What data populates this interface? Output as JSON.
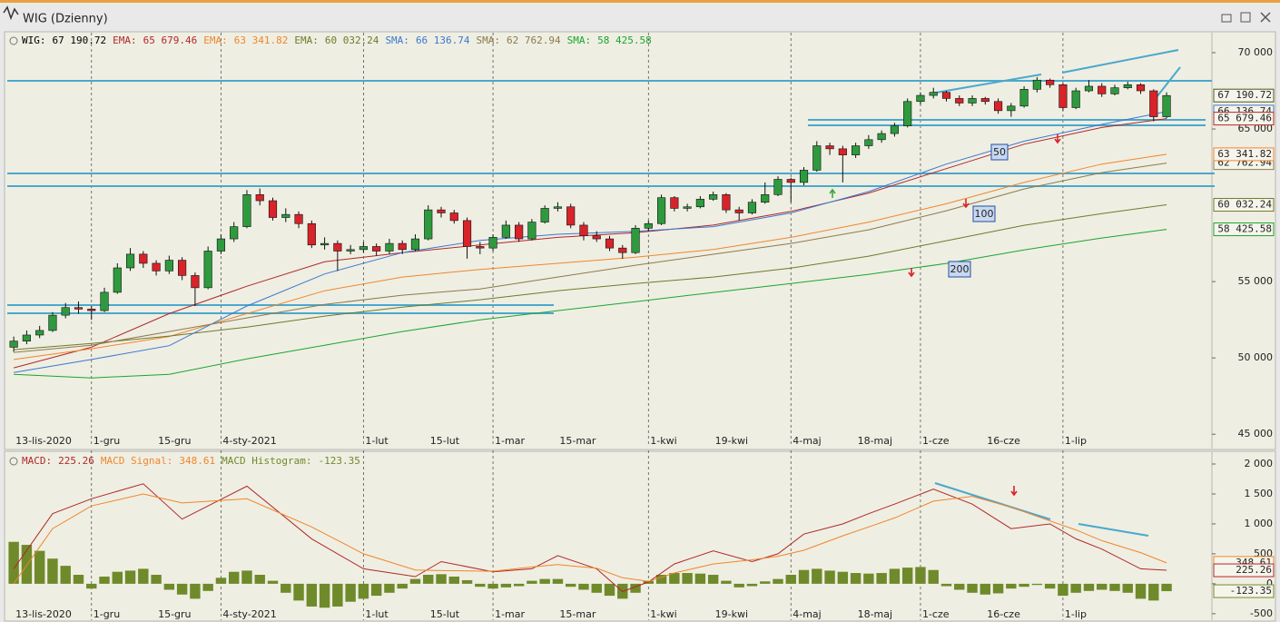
{
  "window": {
    "title": "WIG (Dzienny)"
  },
  "chart_data": [
    {
      "type": "candlestick",
      "name": "WIG:",
      "value_label": "67 190.72",
      "color": "#000000",
      "up_color": "#2e9a3e",
      "down_color": "#d8232a",
      "xlim": [
        -0.5,
        92.5
      ],
      "ylim": [
        44300,
        71070
      ],
      "yticks": [
        {
          "value": 45000,
          "label": "45 000"
        },
        {
          "value": 50000,
          "label": "50 000"
        },
        {
          "value": 55000,
          "label": "55 000"
        },
        {
          "value": 65000,
          "label": "65 000"
        },
        {
          "value": 70000,
          "label": "70 000"
        }
      ],
      "xticks": [
        {
          "value": 0,
          "label": "13-lis-2020",
          "grid": false
        },
        {
          "value": 6,
          "label": "1-gru",
          "grid": true
        },
        {
          "value": 11,
          "label": "15-gru",
          "grid": false
        },
        {
          "value": 16,
          "label": "4-sty-2021",
          "grid": true
        },
        {
          "value": 27,
          "label": "1-lut",
          "grid": true
        },
        {
          "value": 32,
          "label": "15-lut",
          "grid": false
        },
        {
          "value": 37,
          "label": "1-mar",
          "grid": true
        },
        {
          "value": 42,
          "label": "15-mar",
          "grid": false
        },
        {
          "value": 49,
          "label": "1-kwi",
          "grid": true
        },
        {
          "value": 54,
          "label": "19-kwi",
          "grid": false
        },
        {
          "value": 60,
          "label": "4-maj",
          "grid": true
        },
        {
          "value": 65,
          "label": "18-maj",
          "grid": false
        },
        {
          "value": 70,
          "label": "1-cze",
          "grid": true
        },
        {
          "value": 75,
          "label": "16-cze",
          "grid": false
        },
        {
          "value": 81,
          "label": "1-lip",
          "grid": true
        }
      ],
      "ohlc": [
        [
          50700,
          51400,
          50400,
          51100
        ],
        [
          51100,
          51800,
          50900,
          51500
        ],
        [
          51500,
          52100,
          51300,
          51800
        ],
        [
          51800,
          53000,
          51700,
          52800
        ],
        [
          52800,
          53600,
          52600,
          53300
        ],
        [
          53300,
          53700,
          52900,
          53200
        ],
        [
          53200,
          53400,
          52500,
          53100
        ],
        [
          53100,
          54600,
          53000,
          54300
        ],
        [
          54300,
          56200,
          54200,
          55900
        ],
        [
          55900,
          57200,
          55700,
          56800
        ],
        [
          56800,
          57000,
          55900,
          56200
        ],
        [
          56200,
          56400,
          55400,
          55700
        ],
        [
          55700,
          56700,
          55500,
          56400
        ],
        [
          56400,
          56600,
          55100,
          55400
        ],
        [
          55400,
          55600,
          53400,
          54600
        ],
        [
          54600,
          57300,
          54500,
          57000
        ],
        [
          57000,
          58100,
          56800,
          57800
        ],
        [
          57800,
          58900,
          57600,
          58600
        ],
        [
          58600,
          61000,
          58500,
          60700
        ],
        [
          60700,
          61100,
          60000,
          60300
        ],
        [
          60300,
          60500,
          59000,
          59200
        ],
        [
          59200,
          59800,
          58900,
          59400
        ],
        [
          59400,
          59600,
          58500,
          58800
        ],
        [
          58800,
          59000,
          57200,
          57400
        ],
        [
          57400,
          57900,
          57100,
          57500
        ],
        [
          57500,
          57700,
          55700,
          57000
        ],
        [
          57000,
          57400,
          56800,
          57100
        ],
        [
          57100,
          57600,
          56900,
          57300
        ],
        [
          57300,
          57500,
          56700,
          57000
        ],
        [
          57000,
          57800,
          56800,
          57500
        ],
        [
          57500,
          57700,
          56800,
          57100
        ],
        [
          57100,
          58100,
          57000,
          57800
        ],
        [
          57800,
          60000,
          57700,
          59700
        ],
        [
          59700,
          59900,
          59200,
          59500
        ],
        [
          59500,
          59700,
          58800,
          59000
        ],
        [
          59000,
          59200,
          56500,
          57300
        ],
        [
          57300,
          57600,
          56800,
          57200
        ],
        [
          57200,
          58100,
          57000,
          57900
        ],
        [
          57900,
          59000,
          57800,
          58700
        ],
        [
          58700,
          58900,
          57600,
          57800
        ],
        [
          57800,
          59100,
          57700,
          58900
        ],
        [
          58900,
          60000,
          58800,
          59800
        ],
        [
          59800,
          60200,
          59600,
          59900
        ],
        [
          59900,
          60100,
          58500,
          58700
        ],
        [
          58700,
          58900,
          57700,
          58000
        ],
        [
          58000,
          58300,
          57600,
          57800
        ],
        [
          57800,
          58000,
          57000,
          57200
        ],
        [
          57200,
          57400,
          56500,
          56900
        ],
        [
          56900,
          58700,
          56800,
          58500
        ],
        [
          58500,
          59000,
          58300,
          58800
        ],
        [
          58800,
          60700,
          58700,
          60500
        ],
        [
          60500,
          60600,
          59600,
          59800
        ],
        [
          59800,
          60100,
          59600,
          59900
        ],
        [
          59900,
          60600,
          59800,
          60400
        ],
        [
          60400,
          60900,
          60300,
          60700
        ],
        [
          60700,
          60800,
          59500,
          59700
        ],
        [
          59700,
          59900,
          59000,
          59500
        ],
        [
          59500,
          60400,
          59400,
          60200
        ],
        [
          60200,
          61500,
          60100,
          60700
        ],
        [
          60700,
          61900,
          60600,
          61700
        ],
        [
          61700,
          61800,
          60200,
          61500
        ],
        [
          61500,
          62500,
          61300,
          62300
        ],
        [
          62300,
          64200,
          62200,
          63900
        ],
        [
          63900,
          64100,
          63300,
          63700
        ],
        [
          63700,
          63900,
          61500,
          63300
        ],
        [
          63300,
          64100,
          63100,
          63900
        ],
        [
          63900,
          64600,
          63700,
          64300
        ],
        [
          64300,
          64900,
          64100,
          64700
        ],
        [
          64700,
          65400,
          64500,
          65200
        ],
        [
          65200,
          67000,
          65100,
          66800
        ],
        [
          66800,
          67400,
          66600,
          67200
        ],
        [
          67200,
          67700,
          67000,
          67400
        ],
        [
          67400,
          67500,
          66800,
          67000
        ],
        [
          67000,
          67200,
          66500,
          66700
        ],
        [
          66700,
          67200,
          66500,
          67000
        ],
        [
          67000,
          67100,
          66600,
          66800
        ],
        [
          66800,
          67000,
          66000,
          66200
        ],
        [
          66200,
          66700,
          65800,
          66500
        ],
        [
          66500,
          67800,
          66400,
          67600
        ],
        [
          67600,
          68400,
          67400,
          68200
        ],
        [
          68200,
          68300,
          67700,
          67900
        ],
        [
          67900,
          68000,
          66200,
          66400
        ],
        [
          66400,
          67700,
          66300,
          67500
        ],
        [
          67500,
          68200,
          67400,
          67800
        ],
        [
          67800,
          68000,
          67100,
          67300
        ],
        [
          67300,
          67900,
          67200,
          67700
        ],
        [
          67700,
          68100,
          67600,
          67900
        ],
        [
          67900,
          68000,
          67300,
          67500
        ],
        [
          67500,
          67600,
          65500,
          65800
        ],
        [
          65800,
          67400,
          65700,
          67190.72
        ]
      ],
      "x": [
        0,
        6,
        12,
        18,
        24,
        30,
        36,
        42,
        48,
        54,
        60,
        66,
        72,
        78,
        84,
        89
      ],
      "series": [
        {
          "name": "EMA:",
          "value_label": "65 679.46",
          "color": "#b02828",
          "values": [
            49350,
            50700,
            52900,
            54700,
            56300,
            56900,
            57400,
            57900,
            58200,
            58700,
            59600,
            60800,
            62400,
            64000,
            65100,
            65679.46
          ]
        },
        {
          "name": "EMA:",
          "value_label": "63 341.82",
          "color": "#f0862a",
          "values": [
            49900,
            50600,
            51400,
            52900,
            54400,
            55300,
            55800,
            56200,
            56600,
            57100,
            57900,
            58900,
            60100,
            61500,
            62700,
            63341.82
          ]
        },
        {
          "name": "EMA:",
          "value_label": "60 032.24",
          "color": "#6f7a2a",
          "values": [
            50540,
            50950,
            51430,
            52020,
            52740,
            53330,
            53810,
            54400,
            54880,
            55300,
            55890,
            56670,
            57680,
            58690,
            59460,
            60032.24
          ]
        },
        {
          "name": "SMA:",
          "value_label": "66 136.74",
          "color": "#3a78d0",
          "values": [
            49050,
            49900,
            50800,
            53400,
            55500,
            56900,
            57700,
            58100,
            58300,
            58600,
            59500,
            60900,
            62700,
            64200,
            65300,
            66136.74
          ]
        },
        {
          "name": "SMA:",
          "value_label": "62 762.94",
          "color": "#8c7a4a",
          "values": [
            50360,
            50830,
            51730,
            52620,
            53510,
            54110,
            54520,
            55300,
            56070,
            56790,
            57500,
            58390,
            59640,
            61070,
            62140,
            62762.94
          ]
        },
        {
          "name": "SMA:",
          "value_label": "58 425.58",
          "color": "#1aa52e",
          "values": [
            48930,
            48690,
            48930,
            49940,
            50830,
            51730,
            52500,
            53100,
            53690,
            54290,
            54880,
            55480,
            56190,
            57080,
            57860,
            58425.58
          ]
        }
      ],
      "annotations": [
        "50",
        "100",
        "200"
      ]
    },
    {
      "type": "macd",
      "xlim": [
        -0.5,
        92.5
      ],
      "ylim": [
        -608,
        2167
      ],
      "yticks": [
        -500,
        0,
        500,
        {
          "value": 1000,
          "label": "1 000"
        },
        {
          "value": 1500,
          "label": "1 500"
        },
        {
          "value": 2000,
          "label": "2 000"
        }
      ],
      "x": [
        0,
        3,
        6,
        10,
        13,
        18,
        23,
        27,
        31,
        33,
        37,
        40,
        42,
        45,
        47,
        49,
        51,
        54,
        57,
        59,
        61,
        64,
        66,
        68,
        71,
        74,
        77,
        80,
        82,
        84,
        87,
        89
      ],
      "series": [
        {
          "name": "MACD:",
          "value_label": "225.26",
          "color": "#b02828",
          "values": [
            250,
            1170,
            1420,
            1670,
            1080,
            1630,
            750,
            250,
            120,
            370,
            200,
            250,
            470,
            250,
            -130,
            30,
            330,
            550,
            370,
            500,
            830,
            1000,
            1170,
            1330,
            1580,
            1330,
            920,
            1000,
            750,
            580,
            250,
            225.26
          ]
        },
        {
          "name": "MACD Signal:",
          "value_label": "348.61",
          "color": "#f0862a",
          "values": [
            0,
            920,
            1300,
            1500,
            1350,
            1420,
            950,
            500,
            230,
            220,
            210,
            280,
            320,
            260,
            100,
            40,
            180,
            330,
            400,
            460,
            560,
            800,
            950,
            1100,
            1380,
            1460,
            1280,
            1050,
            900,
            720,
            520,
            348.61
          ]
        }
      ],
      "histogram": {
        "name": "MACD Histogram:",
        "value_label": "-123.35",
        "color": "#6f8a2a",
        "values": [
          700,
          650,
          550,
          420,
          300,
          150,
          -80,
          120,
          200,
          220,
          250,
          150,
          -100,
          -180,
          -250,
          -120,
          100,
          200,
          220,
          150,
          50,
          -150,
          -280,
          -380,
          -400,
          -380,
          -300,
          -250,
          -200,
          -150,
          -80,
          80,
          150,
          160,
          120,
          60,
          -50,
          -80,
          -60,
          -40,
          50,
          80,
          80,
          -50,
          -100,
          -150,
          -200,
          -250,
          -150,
          50,
          150,
          180,
          180,
          170,
          150,
          50,
          -60,
          -40,
          40,
          80,
          150,
          230,
          250,
          220,
          200,
          180,
          170,
          180,
          250,
          270,
          280,
          230,
          -40,
          -100,
          -150,
          -180,
          -160,
          -80,
          -50,
          -20,
          -80,
          -200,
          -150,
          -120,
          -100,
          -120,
          -150,
          -250,
          -280,
          -123.35
        ]
      }
    }
  ]
}
